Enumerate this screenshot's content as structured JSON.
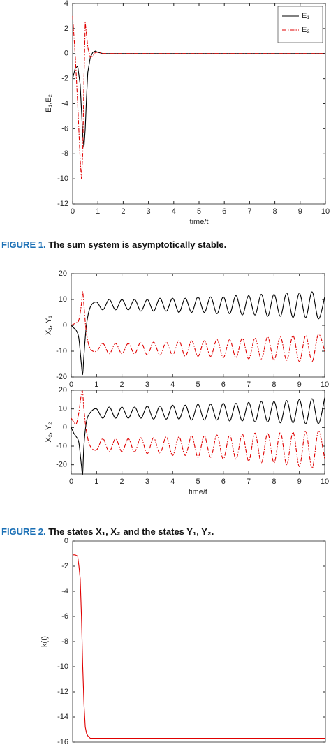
{
  "chart_data": [
    {
      "type": "line",
      "xlabel": "time/t",
      "ylabel": "E₁,E₂",
      "x": [
        0,
        0.1,
        0.2,
        0.3,
        0.35,
        0.4,
        0.45,
        0.5,
        0.55,
        0.6,
        0.7,
        0.8,
        0.9,
        1,
        1.2,
        1.5,
        2,
        3,
        4,
        5,
        6,
        7,
        8,
        9,
        10
      ],
      "series": [
        {
          "name": "E₁",
          "color": "#000000",
          "style": "solid",
          "values": [
            -2,
            -1.2,
            -1,
            -2.5,
            -4.5,
            -6.5,
            -7.5,
            -6,
            -3.5,
            -1.5,
            -0.3,
            0.1,
            0.2,
            0.1,
            0,
            0,
            0,
            0,
            0,
            0,
            0,
            0,
            0,
            0,
            0
          ]
        },
        {
          "name": "E₂",
          "color": "#e00000",
          "style": "dashdot",
          "values": [
            3,
            0,
            -4,
            -8.5,
            -10,
            -8,
            -2,
            2.5,
            1.5,
            0.5,
            -0.3,
            -0.2,
            0.1,
            0.1,
            0,
            0,
            0,
            0,
            0,
            0,
            0,
            0,
            0,
            0,
            0
          ]
        }
      ],
      "xlim": [
        0,
        10
      ],
      "xticks": [
        0,
        1,
        2,
        3,
        4,
        5,
        6,
        7,
        8,
        9,
        10
      ],
      "ylim": [
        -12,
        4
      ],
      "yticks": [
        4,
        2,
        0,
        -2,
        -4,
        -6,
        -8,
        -10,
        -12
      ],
      "legend": "upper right"
    },
    {
      "type": "line",
      "ylabel": "X₁, Y₁",
      "x": [
        0,
        0.1,
        0.2,
        0.3,
        0.4,
        0.45,
        0.5,
        0.6,
        0.75,
        1,
        1.25,
        1.5,
        1.75,
        2,
        2.25,
        2.5,
        2.75,
        3,
        3.25,
        3.5,
        3.75,
        4,
        4.25,
        4.5,
        4.75,
        5,
        5.25,
        5.5,
        5.75,
        6,
        6.25,
        6.5,
        6.75,
        7,
        7.25,
        7.5,
        7.75,
        8,
        8.25,
        8.5,
        8.75,
        9,
        9.25,
        9.5,
        9.75,
        10
      ],
      "series": [
        {
          "color": "#000000",
          "style": "solid",
          "values": [
            0,
            -1,
            -2,
            -5,
            -15,
            -19,
            -12,
            0,
            7,
            9,
            6,
            10,
            6,
            10,
            6,
            10,
            5.5,
            10,
            5.5,
            10.5,
            5.5,
            10.5,
            5,
            10.5,
            5,
            11,
            5,
            11,
            4.5,
            11,
            4.5,
            11.5,
            4,
            11.5,
            4,
            12,
            3.5,
            12,
            3.5,
            12.5,
            3,
            12.5,
            3,
            13,
            2.5,
            11
          ]
        },
        {
          "color": "#e00000",
          "style": "dashdot",
          "values": [
            0,
            0.5,
            1,
            2,
            8,
            13,
            8,
            -3,
            -9,
            -10,
            -7,
            -11,
            -7,
            -11,
            -7,
            -11,
            -6.5,
            -11.5,
            -6.5,
            -11.5,
            -6.5,
            -11.5,
            -6,
            -12,
            -6,
            -12,
            -6,
            -12,
            -5.5,
            -12.5,
            -5.5,
            -12.5,
            -5,
            -13,
            -5,
            -13,
            -4.5,
            -13.5,
            -4.5,
            -13.5,
            -4,
            -14,
            -4,
            -14,
            -3.5,
            -10
          ]
        }
      ],
      "xlim": [
        0,
        10
      ],
      "xticks": [
        0,
        1,
        2,
        3,
        4,
        5,
        6,
        7,
        8,
        9,
        10
      ],
      "ylim": [
        -20,
        20
      ],
      "yticks": [
        20,
        10,
        0,
        -10,
        -20
      ]
    },
    {
      "type": "line",
      "xlabel": "time/t",
      "ylabel": "X₂, Y₂",
      "x": [
        0,
        0.1,
        0.2,
        0.3,
        0.4,
        0.45,
        0.5,
        0.6,
        0.75,
        1,
        1.25,
        1.5,
        1.75,
        2,
        2.25,
        2.5,
        2.75,
        3,
        3.25,
        3.5,
        3.75,
        4,
        4.25,
        4.5,
        4.75,
        5,
        5.25,
        5.5,
        5.75,
        6,
        6.25,
        6.5,
        6.75,
        7,
        7.25,
        7.5,
        7.75,
        8,
        8.25,
        8.5,
        8.75,
        9,
        9.25,
        9.5,
        9.75,
        10
      ],
      "series": [
        {
          "color": "#000000",
          "style": "solid",
          "values": [
            0,
            -3,
            -5,
            -8,
            -20,
            -25,
            -10,
            3,
            8,
            10,
            5,
            11,
            5,
            11,
            5,
            11,
            5,
            11.5,
            4.5,
            11.5,
            4.5,
            12,
            4.5,
            12,
            4,
            12.5,
            4,
            12.5,
            4,
            13,
            3.5,
            13,
            3.5,
            13.5,
            3,
            14,
            3,
            14,
            2.5,
            14.5,
            2.5,
            15,
            2,
            15.5,
            2,
            16
          ]
        },
        {
          "color": "#e00000",
          "style": "dashdot",
          "values": [
            5,
            3,
            2,
            8,
            18,
            19,
            10,
            -2,
            -10,
            -12,
            -6,
            -13,
            -6,
            -13,
            -6,
            -13,
            -5.5,
            -14,
            -5.5,
            -14,
            -5,
            -15,
            -5,
            -15,
            -4.5,
            -16,
            -4.5,
            -16,
            -4,
            -17,
            -4,
            -17,
            -3.5,
            -18,
            -3,
            -19,
            -3,
            -19,
            -2.5,
            -20,
            -2.5,
            -21,
            -2,
            -22,
            -2,
            -17
          ]
        }
      ],
      "xlim": [
        0,
        10
      ],
      "xticks": [
        0,
        1,
        2,
        3,
        4,
        5,
        6,
        7,
        8,
        9,
        10
      ],
      "ylim": [
        -25,
        20
      ],
      "yticks": [
        20,
        10,
        0,
        -10,
        -20
      ]
    },
    {
      "type": "line",
      "ylabel": "k(t)",
      "x": [
        0,
        0.1,
        0.2,
        0.25,
        0.3,
        0.35,
        0.4,
        0.45,
        0.5,
        0.55,
        0.6,
        0.7,
        1,
        2,
        4,
        6,
        8,
        10
      ],
      "series": [
        {
          "color": "#e00000",
          "style": "solid",
          "values": [
            -1.1,
            -1.1,
            -1.2,
            -2,
            -3,
            -6,
            -10,
            -13,
            -14.8,
            -15.3,
            -15.5,
            -15.7,
            -15.7,
            -15.7,
            -15.7,
            -15.7,
            -15.7,
            -15.7
          ]
        }
      ],
      "xlim": [
        0,
        10
      ],
      "ylim": [
        -16,
        0
      ],
      "yticks": [
        0,
        -2,
        -4,
        -6,
        -8,
        -10,
        -12,
        -14,
        -16
      ]
    }
  ],
  "captions": [
    {
      "label": "FIGURE 1.",
      "text": "The sum system is asymptotically stable."
    },
    {
      "label": "FIGURE 2.",
      "text": "The states X₁, X₂ and the states Y₁, Y₂."
    }
  ]
}
